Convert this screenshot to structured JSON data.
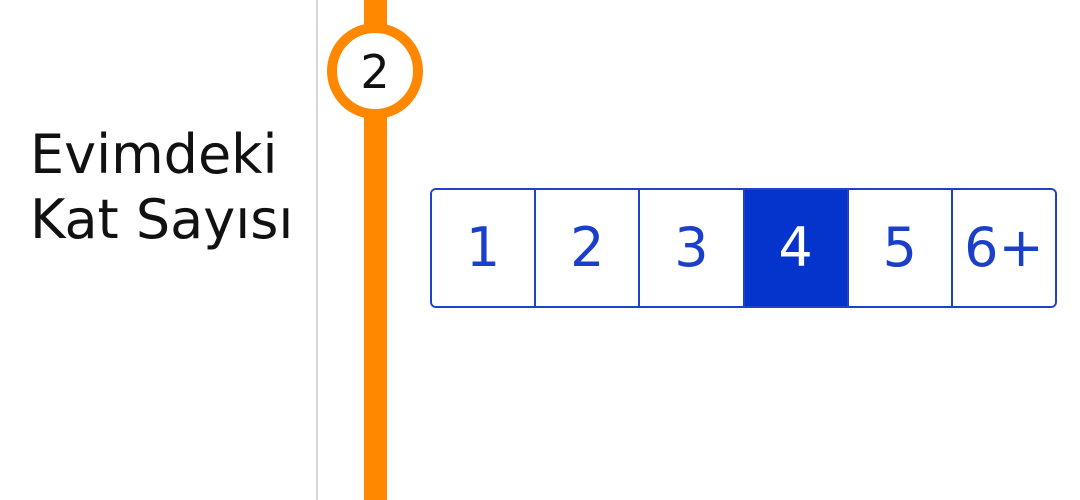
{
  "question": {
    "label": "Evimdeki Kat Sayısı"
  },
  "step": {
    "number": "2"
  },
  "options": {
    "items": [
      {
        "label": "1",
        "selected": false
      },
      {
        "label": "2",
        "selected": false
      },
      {
        "label": "3",
        "selected": false
      },
      {
        "label": "4",
        "selected": true
      },
      {
        "label": "5",
        "selected": false
      },
      {
        "label": "6+",
        "selected": false
      }
    ]
  },
  "colors": {
    "accent_orange": "#ff8800",
    "border_blue": "#2042c9",
    "selected_blue": "#0434cc",
    "text_blue": "#1a3fc8"
  }
}
